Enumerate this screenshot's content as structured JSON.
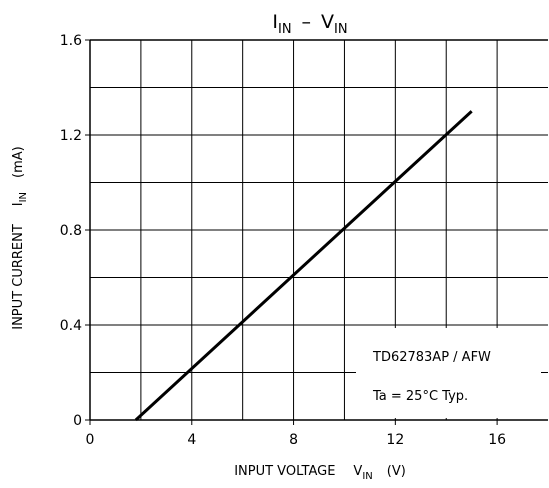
{
  "chart_data": {
    "type": "line",
    "title": {
      "part1_main": "I",
      "part1_sub": "IN",
      "separator": "–",
      "part2_main": "V",
      "part2_sub": "IN"
    },
    "xlabel": {
      "text": "INPUT VOLTAGE",
      "symbol_main": "V",
      "symbol_sub": "IN",
      "unit": "(V)"
    },
    "ylabel": {
      "text": "INPUT CURRENT",
      "symbol_main": "I",
      "symbol_sub": "IN",
      "unit": "(mA)"
    },
    "xlim": [
      0,
      18
    ],
    "ylim": [
      0,
      1.6
    ],
    "x_ticks": [
      0,
      4,
      8,
      12,
      16
    ],
    "x_tick_labels": [
      "0",
      "4",
      "8",
      "12",
      "16"
    ],
    "y_ticks": [
      0,
      0.4,
      0.8,
      1.2,
      1.6
    ],
    "y_tick_labels": [
      "0",
      "0.4",
      "0.8",
      "1.2",
      "1.6"
    ],
    "x_grid": [
      2,
      4,
      6,
      8,
      10,
      12,
      14,
      16
    ],
    "y_grid": [
      0.2,
      0.4,
      0.6,
      0.8,
      1.0,
      1.2,
      1.4
    ],
    "grid": true,
    "series": [
      {
        "x": [
          1.8,
          15
        ],
        "y": [
          0,
          1.3
        ],
        "color": "#000000"
      }
    ],
    "annotations": [
      "TD62783AP / AFW",
      "Ta = 25°C  Typ."
    ]
  }
}
